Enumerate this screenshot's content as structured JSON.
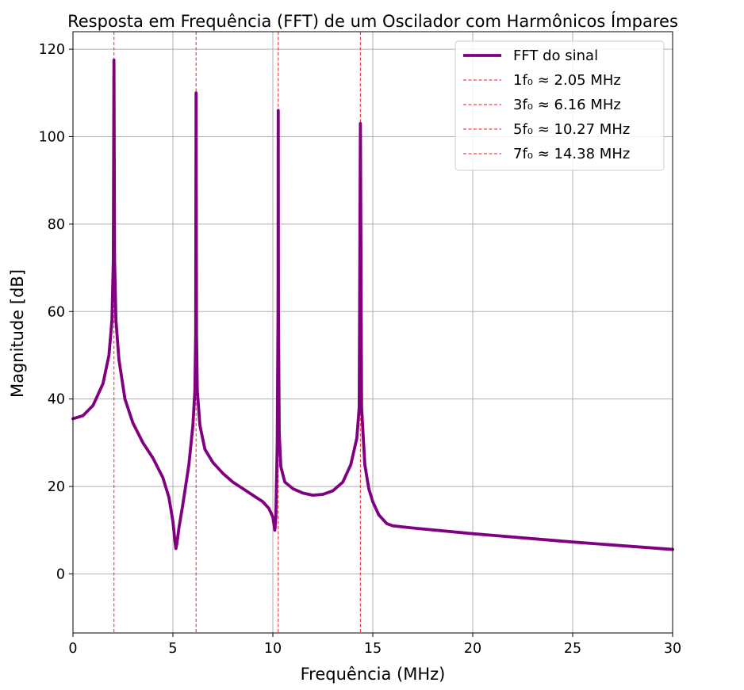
{
  "chart_data": {
    "type": "line",
    "title": "Resposta em Frequência (FFT) de um Oscilador com Harmônicos Ímpares",
    "xlabel": "Frequência (MHz)",
    "ylabel": "Magnitude [dB]",
    "xlim": [
      0,
      30
    ],
    "ylim": [
      -13.5,
      124
    ],
    "x_ticks": [
      0,
      5,
      10,
      15,
      20,
      25,
      30
    ],
    "y_ticks": [
      0,
      20,
      40,
      60,
      80,
      100,
      120
    ],
    "grid": true,
    "legend_position": "top-right",
    "series": [
      {
        "name": "FFT do sinal",
        "color": "#800080",
        "style": "solid",
        "x": [
          0,
          0.5,
          1.0,
          1.5,
          1.8,
          1.95,
          2.02,
          2.05,
          2.08,
          2.15,
          2.3,
          2.6,
          3.0,
          3.5,
          4.0,
          4.5,
          4.8,
          5.0,
          5.1,
          5.15,
          5.2,
          5.3,
          5.5,
          5.8,
          6.0,
          6.1,
          6.14,
          6.16,
          6.18,
          6.22,
          6.35,
          6.6,
          7.0,
          7.5,
          8.0,
          8.5,
          9.0,
          9.5,
          9.8,
          10.0,
          10.1,
          10.15,
          10.22,
          10.26,
          10.27,
          10.28,
          10.32,
          10.4,
          10.6,
          11.0,
          11.5,
          12.0,
          12.5,
          13.0,
          13.5,
          13.9,
          14.2,
          14.32,
          14.38,
          14.44,
          14.6,
          14.8,
          15.0,
          15.3,
          15.7,
          16.0,
          17.0,
          20.0,
          25.0,
          30.0
        ],
        "values": [
          35.5,
          36.2,
          38.5,
          43.5,
          50.0,
          58.0,
          72.0,
          117.5,
          72.0,
          58.0,
          49.0,
          40.0,
          34.5,
          30.0,
          26.5,
          22.0,
          17.5,
          12.0,
          7.5,
          5.8,
          7.0,
          10.5,
          16.0,
          25.0,
          34.0,
          42.0,
          55.0,
          110.0,
          55.0,
          42.0,
          34.0,
          28.5,
          25.5,
          23.0,
          21.0,
          19.5,
          18.0,
          16.5,
          15.0,
          13.0,
          10.0,
          13.0,
          30.0,
          60.0,
          106.0,
          60.0,
          32.0,
          24.5,
          21.0,
          19.5,
          18.5,
          18.0,
          18.2,
          19.0,
          21.0,
          25.0,
          31.0,
          38.0,
          103.0,
          38.0,
          25.0,
          19.5,
          16.5,
          13.5,
          11.5,
          11.0,
          10.5,
          9.2,
          7.3,
          5.6
        ]
      }
    ],
    "markers": [
      {
        "label": "1f₀ ≈ 2.05 MHz",
        "x": 2.05,
        "color": "#ff0000",
        "style": "dashed"
      },
      {
        "label": "3f₀ ≈ 6.16 MHz",
        "x": 6.16,
        "color": "#ff0000",
        "style": "dashed"
      },
      {
        "label": "5f₀ ≈ 10.27 MHz",
        "x": 10.27,
        "color": "#ff0000",
        "style": "dashed"
      },
      {
        "label": "7f₀ ≈ 14.38 MHz",
        "x": 14.38,
        "color": "#ff0000",
        "style": "dashed"
      }
    ]
  }
}
